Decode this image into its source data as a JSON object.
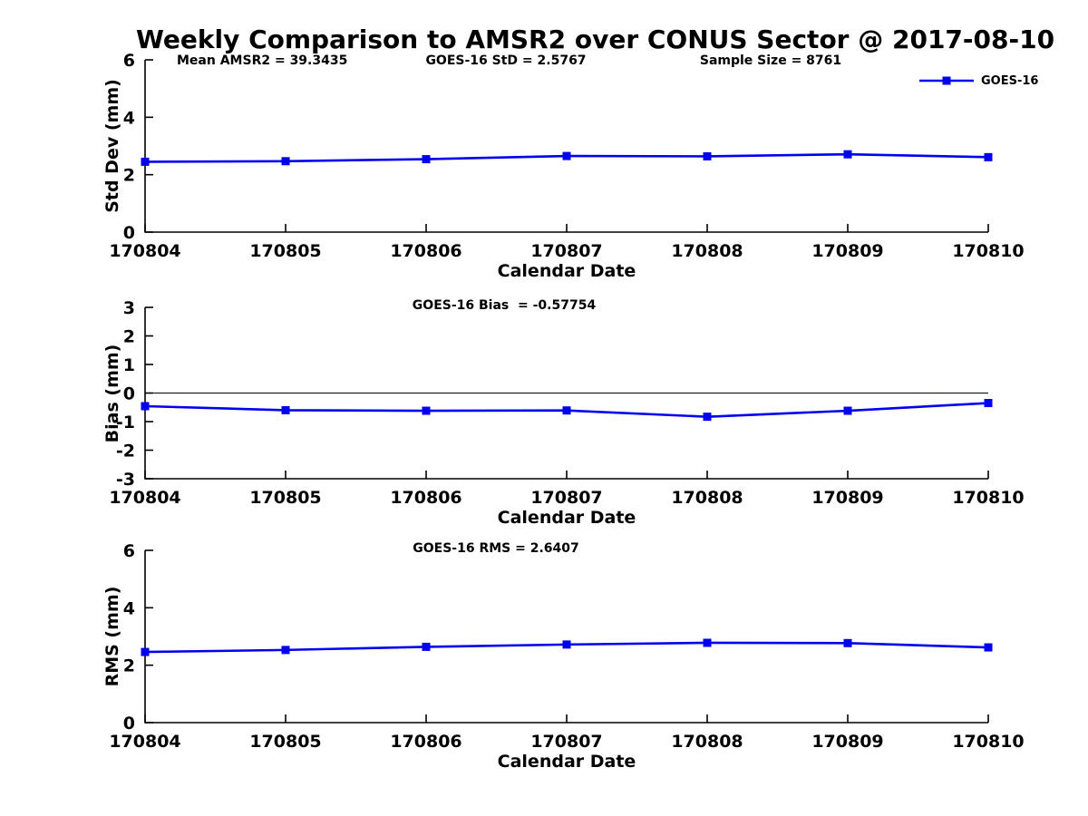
{
  "figure": {
    "title": "Weekly Comparison to AMSR2 over CONUS Sector @ 2017-08-10",
    "legend": {
      "label": "GOES-16"
    },
    "colors": {
      "line": "#0000EE",
      "axis": "#000000",
      "text": "#000000",
      "background": "#FFFFFF"
    }
  },
  "chart_data": [
    {
      "type": "line",
      "panel": "std-dev",
      "ylabel": "Std Dev (mm)",
      "xlabel": "Calendar Date",
      "ylim": [
        0,
        6
      ],
      "yticks": [
        0,
        2,
        4,
        6
      ],
      "x": [
        "170804",
        "170805",
        "170806",
        "170807",
        "170808",
        "170809",
        "170810"
      ],
      "series": [
        {
          "name": "GOES-16",
          "values": [
            2.45,
            2.47,
            2.54,
            2.65,
            2.64,
            2.71,
            2.61
          ]
        }
      ],
      "annotations": [
        "Mean AMSR2 = 39.3435",
        "GOES-16 StD = 2.5767",
        "Sample Size = 8761"
      ],
      "zero_line": false,
      "grid": false,
      "legend_position": "top-right-outside",
      "marker": "square"
    },
    {
      "type": "line",
      "panel": "bias",
      "ylabel": "Bias (mm)",
      "xlabel": "Calendar Date",
      "ylim": [
        -3,
        3
      ],
      "yticks": [
        -3,
        -2,
        -1,
        0,
        1,
        2,
        3
      ],
      "x": [
        "170804",
        "170805",
        "170806",
        "170807",
        "170808",
        "170809",
        "170810"
      ],
      "series": [
        {
          "name": "GOES-16",
          "values": [
            -0.46,
            -0.6,
            -0.62,
            -0.61,
            -0.83,
            -0.62,
            -0.35
          ]
        }
      ],
      "annotations": [
        "GOES-16 Bias  = -0.57754"
      ],
      "zero_line": true,
      "grid": false,
      "marker": "square"
    },
    {
      "type": "line",
      "panel": "rms",
      "ylabel": "RMS (mm)",
      "xlabel": "Calendar Date",
      "ylim": [
        0,
        6
      ],
      "yticks": [
        0,
        2,
        4,
        6
      ],
      "x": [
        "170804",
        "170805",
        "170806",
        "170807",
        "170808",
        "170809",
        "170810"
      ],
      "series": [
        {
          "name": "GOES-16",
          "values": [
            2.46,
            2.53,
            2.64,
            2.72,
            2.78,
            2.77,
            2.62
          ]
        }
      ],
      "annotations": [
        "GOES-16 RMS = 2.6407"
      ],
      "zero_line": false,
      "grid": false,
      "marker": "square"
    }
  ]
}
